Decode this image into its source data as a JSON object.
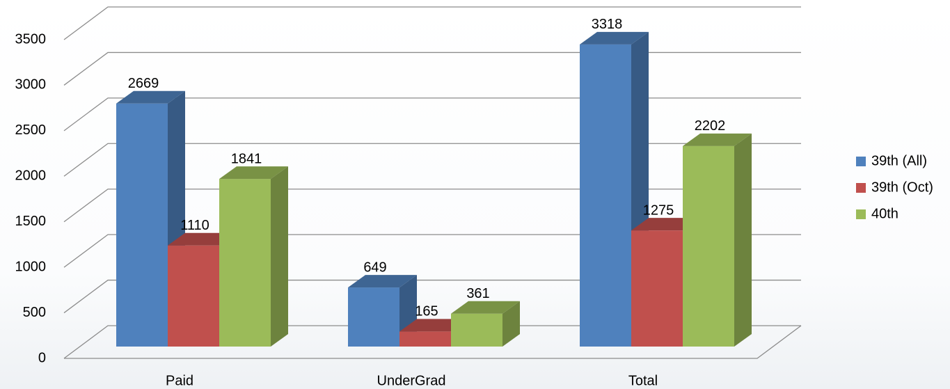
{
  "chart_data": {
    "type": "bar3d",
    "categories": [
      "Paid",
      "UnderGrad",
      "Total"
    ],
    "series": [
      {
        "name": "39th (All)",
        "color": "#4f81bd",
        "values": [
          2669,
          649,
          3318
        ]
      },
      {
        "name": "39th (Oct)",
        "color": "#c0504d",
        "values": [
          1110,
          165,
          1275
        ]
      },
      {
        "name": "40th",
        "color": "#9bbb59",
        "values": [
          1841,
          361,
          2202
        ]
      }
    ],
    "ylim": [
      0,
      3500
    ],
    "yticks": [
      0,
      500,
      1000,
      1500,
      2000,
      2500,
      3000,
      3500
    ],
    "grid": true,
    "legend": "right",
    "data_labels": true
  }
}
